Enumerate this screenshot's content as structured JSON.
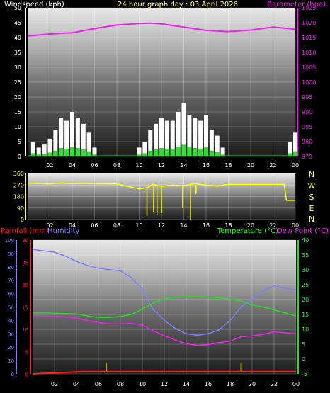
{
  "header": {
    "left_label": "Windspeed (kph)",
    "center_label": "24 hour graph day : 03 April 2026",
    "right_label": "Barometer (hpa)"
  },
  "direction_letters": [
    "N",
    "W",
    "S",
    "E",
    "N"
  ],
  "bottom_header": {
    "rainfall_label": "Rainfall (mm)",
    "humidity_label": "Humidity",
    "temperature_label": "Temperature (°C)",
    "dewpoint_label": "Dew Point (°C)"
  },
  "colors": {
    "background": "#000000",
    "plot_top": "#e8e8e8",
    "plot_bottom": "#1c1c1c",
    "wind": "#ffffff",
    "gust_low": "#33dd33",
    "barometer": "#ee22ee",
    "direction": "#ffff00",
    "rain_scale": "#ff2222",
    "humidity": "#7f7fff",
    "temperature": "#22dd22",
    "dewpoint": "#ee22ee",
    "rain": "#ff2222",
    "text_yellow": "#ffff66",
    "text_white": "#ffffff",
    "text_green": "#22ff22"
  },
  "chart_data": [
    {
      "id": "wind-baro",
      "type": "bar",
      "title": "24 hour graph day : 03 April 2026",
      "xlabel": "",
      "x_ticks": [
        "02",
        "04",
        "06",
        "08",
        "10",
        "12",
        "14",
        "16",
        "18",
        "20",
        "22",
        "00"
      ],
      "left_axis": {
        "label": "Windspeed (kph)",
        "range": [
          0,
          50
        ],
        "ticks": [
          "0",
          "5",
          "10",
          "15",
          "20",
          "25",
          "30",
          "35",
          "40",
          "45",
          "50"
        ]
      },
      "right_axis": {
        "label": "Barometer (hpa)",
        "range": [
          975,
          1025
        ],
        "ticks": [
          "975",
          "980",
          "985",
          "990",
          "995",
          "1000",
          "1005",
          "1010",
          "1015",
          "1020",
          "1025"
        ]
      },
      "grid": true,
      "series": [
        {
          "name": "Windspeed (kph)",
          "hours": [
            0.5,
            1,
            1.5,
            2,
            2.5,
            3,
            3.5,
            4,
            4.5,
            5,
            5.5,
            6,
            10,
            10.5,
            11,
            11.5,
            12,
            12.5,
            13,
            13.5,
            14,
            14.5,
            15,
            15.5,
            16,
            16.5,
            17,
            17.5,
            23.5,
            24
          ],
          "values": [
            5,
            3,
            4,
            6,
            9,
            13,
            12,
            15,
            13,
            11,
            8,
            3,
            3,
            5,
            9,
            11,
            13,
            12,
            12,
            15,
            18,
            14,
            13,
            12,
            14,
            9,
            7,
            3,
            5,
            8
          ]
        },
        {
          "name": "Barometer (hpa)",
          "hours": [
            0,
            2,
            4,
            6,
            8,
            10,
            11,
            12,
            14,
            16,
            18,
            20,
            22,
            24
          ],
          "values": [
            1015.5,
            1016.2,
            1016.6,
            1018,
            1019.2,
            1019.7,
            1019.8,
            1019.6,
            1018.5,
            1017.4,
            1017,
            1017.5,
            1018.5,
            1017.8
          ]
        }
      ]
    },
    {
      "id": "direction",
      "type": "line",
      "x_ticks": [
        "02",
        "04",
        "06",
        "08",
        "10",
        "12",
        "14",
        "16",
        "18",
        "20",
        "22",
        "00"
      ],
      "y_axis": {
        "range": [
          0,
          360
        ],
        "ticks": [
          "0",
          "90",
          "180",
          "270",
          "360"
        ]
      },
      "series": [
        {
          "name": "Wind direction",
          "hours": [
            0,
            1,
            2,
            3,
            4,
            5,
            6,
            8,
            10,
            10.8,
            11.2,
            12,
            13,
            14,
            15,
            16,
            17,
            18,
            19,
            20,
            21,
            22,
            23,
            23.2,
            24
          ],
          "values": [
            285,
            282,
            278,
            285,
            280,
            283,
            280,
            278,
            240,
            250,
            275,
            260,
            270,
            265,
            280,
            270,
            262,
            275,
            276,
            276,
            275,
            276,
            276,
            150,
            150
          ]
        }
      ]
    },
    {
      "id": "temp-hum-rain",
      "type": "line",
      "x_ticks": [
        "02",
        "04",
        "06",
        "08",
        "10",
        "12",
        "14",
        "16",
        "18",
        "20",
        "22",
        "00"
      ],
      "humidity_axis": {
        "label": "Humidity",
        "range": [
          0,
          100
        ],
        "ticks": [
          "0",
          "10",
          "20",
          "30",
          "40",
          "50",
          "60",
          "70",
          "80",
          "90",
          "100"
        ]
      },
      "rain_axis": {
        "label": "Rainfall (mm)",
        "range": [
          0,
          30
        ],
        "ticks": [
          "0",
          "5",
          "10",
          "15",
          "20",
          "25",
          "30"
        ]
      },
      "temp_axis": {
        "label": "Temperature (°C)",
        "range": [
          -5,
          40
        ],
        "ticks": [
          "-5",
          "0",
          "5",
          "10",
          "15",
          "20",
          "25",
          "30",
          "35",
          "40"
        ]
      },
      "series": [
        {
          "name": "Humidity",
          "hours": [
            0,
            1,
            2,
            3,
            4,
            5,
            6,
            7,
            8,
            9,
            10,
            11,
            12,
            13,
            14,
            15,
            16,
            17,
            18,
            19,
            20,
            21,
            22,
            23,
            24
          ],
          "values": [
            93,
            92,
            91,
            88,
            84,
            81,
            79,
            78,
            77,
            72,
            63,
            48,
            40,
            34,
            30,
            29,
            30,
            33,
            40,
            50,
            56,
            62,
            66,
            64,
            63
          ]
        },
        {
          "name": "Temperature (°C)",
          "hours": [
            0,
            1,
            2,
            3,
            4,
            5,
            6,
            7,
            8,
            9,
            10,
            11,
            12,
            13,
            14,
            15,
            16,
            17,
            18,
            19,
            20,
            21,
            22,
            23,
            24
          ],
          "values": [
            15.5,
            15.5,
            15.4,
            15.3,
            15.2,
            14.5,
            14,
            14,
            14.3,
            15,
            16.8,
            18.8,
            20.3,
            20.8,
            21,
            21.2,
            20.8,
            20.6,
            20.2,
            19.5,
            18.2,
            17.5,
            16.5,
            15.5,
            14.5
          ]
        },
        {
          "name": "Dew Point (°C)",
          "hours": [
            0,
            1,
            2,
            3,
            4,
            5,
            6,
            7,
            8,
            9,
            10,
            11,
            12,
            13,
            14,
            15,
            16,
            17,
            18,
            19,
            20,
            21,
            22,
            23,
            24
          ],
          "values": [
            14.6,
            14.6,
            14.5,
            14.2,
            13.8,
            12.9,
            12.3,
            11.8,
            11.8,
            12,
            11.5,
            9.5,
            7.8,
            6.4,
            5.2,
            4.6,
            4.8,
            5.6,
            6,
            7.5,
            7.8,
            8.3,
            9.2,
            8.8,
            8.5
          ]
        },
        {
          "name": "Rainfall (mm)",
          "hours": [
            0,
            4.5,
            24
          ],
          "values": [
            0,
            0.5,
            0.5
          ]
        }
      ]
    }
  ]
}
